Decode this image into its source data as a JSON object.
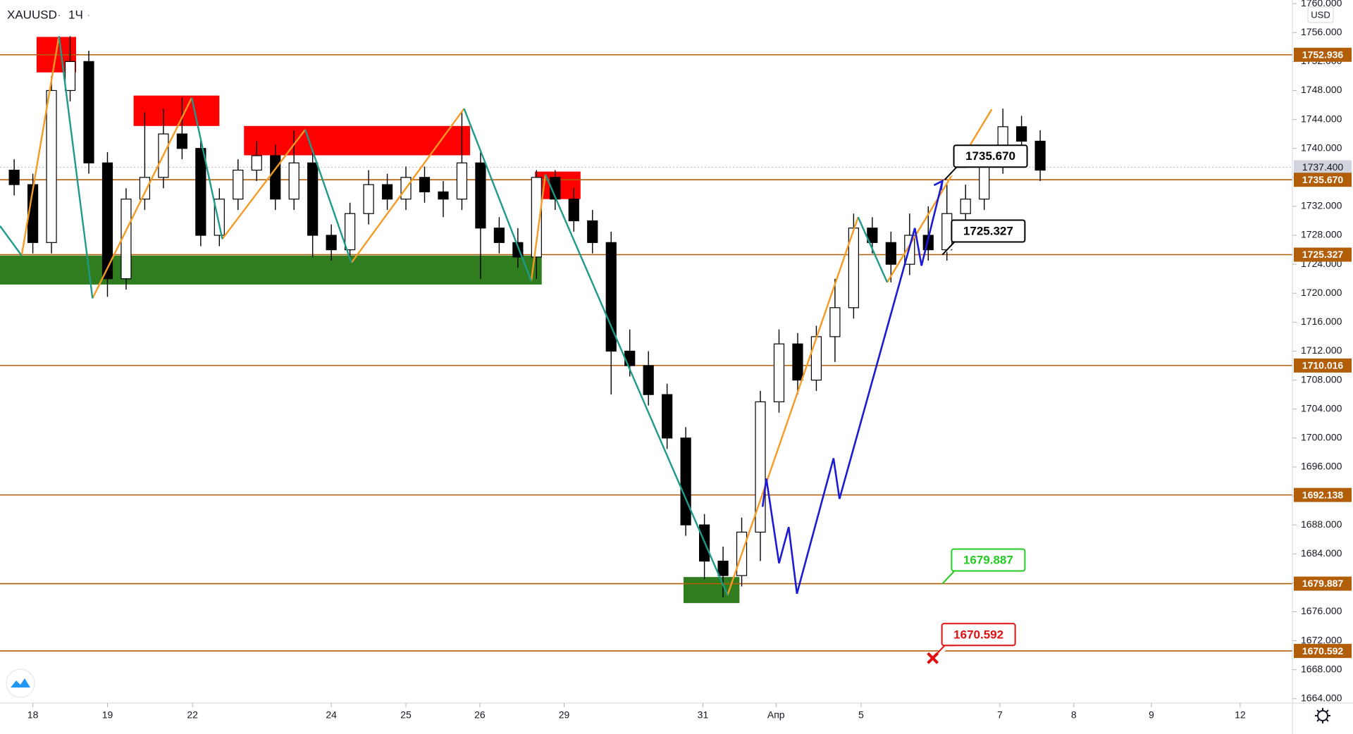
{
  "chart_data": {
    "type": "candlestick",
    "symbol": "XAUUSD",
    "interval": "1Ч",
    "currency": "USD",
    "xlim": [
      -0.44,
      16.88
    ],
    "ylim": [
      1663.4,
      1760.5
    ],
    "xticks": [
      {
        "value": 0,
        "label": "18"
      },
      {
        "value": 1.0,
        "label": "19"
      },
      {
        "value": 2.14,
        "label": "22"
      },
      {
        "value": 4.0,
        "label": "24"
      },
      {
        "value": 5.0,
        "label": "25"
      },
      {
        "value": 5.99,
        "label": "26"
      },
      {
        "value": 7.12,
        "label": "29"
      },
      {
        "value": 8.98,
        "label": "31"
      },
      {
        "value": 9.96,
        "label": "Апр"
      },
      {
        "value": 11.1,
        "label": "5"
      },
      {
        "value": 12.96,
        "label": "7"
      },
      {
        "value": 13.95,
        "label": "8"
      },
      {
        "value": 14.99,
        "label": "9"
      },
      {
        "value": 16.18,
        "label": "12"
      }
    ],
    "yticks": [
      {
        "value": 1664,
        "label": "1664.000"
      },
      {
        "value": 1668,
        "label": "1668.000"
      },
      {
        "value": 1672,
        "label": "1672.000"
      },
      {
        "value": 1676,
        "label": "1676.000"
      },
      {
        "value": 1680,
        "label": "1680.000"
      },
      {
        "value": 1684,
        "label": "1684.000"
      },
      {
        "value": 1688,
        "label": "1688.000"
      },
      {
        "value": 1692,
        "label": "1692.000"
      },
      {
        "value": 1696,
        "label": "1696.000"
      },
      {
        "value": 1700,
        "label": "1700.000"
      },
      {
        "value": 1704,
        "label": "1704.000"
      },
      {
        "value": 1708,
        "label": "1708.000"
      },
      {
        "value": 1712,
        "label": "1712.000"
      },
      {
        "value": 1716,
        "label": "1716.000"
      },
      {
        "value": 1720,
        "label": "1720.000"
      },
      {
        "value": 1724,
        "label": "1724.000"
      },
      {
        "value": 1728,
        "label": "1728.000"
      },
      {
        "value": 1732,
        "label": "1732.000"
      },
      {
        "value": 1736,
        "label": "1736.000"
      },
      {
        "value": 1740,
        "label": "1740.000"
      },
      {
        "value": 1744,
        "label": "1744.000"
      },
      {
        "value": 1748,
        "label": "1748.000"
      },
      {
        "value": 1752,
        "label": "1752.000"
      },
      {
        "value": 1756,
        "label": "1756.000"
      },
      {
        "value": 1760,
        "label": "1760.000"
      }
    ],
    "x": [
      -0.25,
      0,
      0.25,
      0.5,
      0.75,
      1.0,
      1.25,
      1.5,
      1.75,
      2.0,
      2.25,
      2.5,
      2.75,
      3.0,
      3.25,
      3.5,
      3.75,
      4.0,
      4.25,
      4.5,
      4.75,
      5.0,
      5.25,
      5.5,
      5.75,
      6.0,
      6.25,
      6.5,
      6.75,
      7.0,
      7.25,
      7.5,
      7.75,
      8.0,
      8.25,
      8.5,
      8.75,
      9.0,
      9.25,
      9.5,
      9.75,
      10.0,
      10.25,
      10.5,
      10.75,
      11.0,
      11.25,
      11.5,
      11.75,
      12.0,
      12.25,
      12.5,
      12.75,
      13.0,
      13.25,
      13.5
    ],
    "open": [
      1737,
      1735,
      1727,
      1748,
      1752,
      1738,
      1722,
      1733,
      1736,
      1742,
      1740,
      1728,
      1733,
      1737,
      1739,
      1733,
      1738,
      1728,
      1726,
      1731,
      1735,
      1733,
      1736,
      1734,
      1733,
      1738,
      1729,
      1727,
      1725,
      1736,
      1733,
      1730,
      1727,
      1712,
      1710,
      1706,
      1700,
      1688,
      1683,
      1681,
      1687,
      1705,
      1713,
      1708,
      1714,
      1718,
      1729,
      1727,
      1724,
      1728,
      1726,
      1731,
      1733,
      1738,
      1743,
      1741
    ],
    "high": [
      1738.5,
      1736.5,
      1750,
      1755.5,
      1753.5,
      1739.5,
      1734.5,
      1745,
      1745.5,
      1747,
      1741.5,
      1734.5,
      1738.5,
      1741,
      1740.5,
      1742.5,
      1739.5,
      1729.5,
      1732.5,
      1737,
      1736.5,
      1737.5,
      1737.5,
      1735.5,
      1745,
      1739.5,
      1730.5,
      1729,
      1737,
      1737,
      1734.5,
      1731.5,
      1728.5,
      1715,
      1712,
      1707.5,
      1701.5,
      1689.5,
      1685,
      1689,
      1706.5,
      1715,
      1714.5,
      1715.5,
      1722,
      1731,
      1730.5,
      1728.5,
      1731,
      1732,
      1735,
      1735,
      1739.5,
      1745.5,
      1744.5,
      1742.5
    ],
    "low": [
      1733.5,
      1725.5,
      1725.5,
      1746.5,
      1736.5,
      1719.5,
      1720.5,
      1731.5,
      1734.5,
      1738.5,
      1726.5,
      1726.5,
      1731.5,
      1735.5,
      1731.5,
      1731.5,
      1725,
      1724.5,
      1724.5,
      1729.5,
      1731.5,
      1731.5,
      1732.5,
      1730.5,
      1731.5,
      1722,
      1725.5,
      1723.5,
      1722,
      1731.5,
      1728.5,
      1725.5,
      1706,
      1708.5,
      1704.5,
      1698.5,
      1686.5,
      1680.5,
      1678,
      1679.5,
      1683,
      1703.5,
      1706,
      1706.5,
      1710.5,
      1716.5,
      1725.5,
      1721.5,
      1722.5,
      1724.5,
      1724.5,
      1729.5,
      1731.5,
      1736.5,
      1739.5,
      1735.5
    ],
    "close": [
      1735,
      1727,
      1748,
      1752,
      1738,
      1722,
      1733,
      1736,
      1742,
      1740,
      1728,
      1733,
      1737,
      1739,
      1733,
      1738,
      1728,
      1726,
      1731,
      1735,
      1733,
      1736,
      1734,
      1733,
      1738,
      1729,
      1727,
      1725,
      1736,
      1733,
      1730,
      1727,
      1712,
      1710,
      1706,
      1700,
      1688,
      1683,
      1681,
      1687,
      1705,
      1713,
      1708,
      1714,
      1718,
      1729,
      1727,
      1724,
      1728,
      1726,
      1731,
      1733,
      1738,
      1743,
      1741,
      1737
    ],
    "up_color": "#ffffff",
    "down_color": "#000000",
    "last_price": {
      "value": 1737.4,
      "label": "1737.400"
    },
    "level_color": "#b25e09",
    "levels": [
      {
        "value": 1752.936,
        "label": "1752.936"
      },
      {
        "value": 1735.67,
        "label": "1735.670"
      },
      {
        "value": 1725.327,
        "label": "1725.327"
      },
      {
        "value": 1710.016,
        "label": "1710.016"
      },
      {
        "value": 1692.138,
        "label": "1692.138"
      },
      {
        "value": 1679.887,
        "label": "1679.887"
      },
      {
        "value": 1670.592,
        "label": "1670.592"
      }
    ],
    "zones": [
      {
        "color": "#ff0000",
        "x": [
          0.05,
          0.58
        ],
        "y": [
          1750.5,
          1755.4
        ]
      },
      {
        "color": "#ff0000",
        "x": [
          1.35,
          2.5
        ],
        "y": [
          1743.1,
          1747.3
        ]
      },
      {
        "color": "#ff0000",
        "x": [
          2.83,
          5.86
        ],
        "y": [
          1739.05,
          1743.1
        ]
      },
      {
        "color": "#ff0000",
        "x": [
          6.73,
          7.34
        ],
        "y": [
          1733.0,
          1736.8
        ]
      },
      {
        "color": "#2f7d1f",
        "x": [
          -0.44,
          6.82
        ],
        "y": [
          1721.2,
          1725.2
        ]
      },
      {
        "color": "#2f7d1f",
        "x": [
          8.72,
          9.47
        ],
        "y": [
          1677.2,
          1680.8
        ]
      }
    ],
    "zigzags": [
      {
        "color": "#f59a23",
        "x": [
          -0.15,
          0.35,
          null,
          0.8,
          2.13,
          null,
          2.54,
          3.65,
          null,
          4.27,
          5.78,
          null,
          6.68,
          6.87,
          null,
          9.31,
          11.06,
          null,
          11.45,
          12.85
        ],
        "y": [
          1725.2,
          1755.5,
          null,
          1719.3,
          1747.0,
          null,
          1727.5,
          1742.6,
          null,
          1724.2,
          1745.5,
          null,
          1721.7,
          1736.4,
          null,
          1678.3,
          1730.5,
          null,
          1721.5,
          1745.4
        ]
      },
      {
        "color": "#1e9a8a",
        "x": [
          -0.44,
          -0.15,
          null,
          0.35,
          0.8,
          null,
          2.13,
          2.54,
          null,
          3.65,
          4.27,
          null,
          5.78,
          6.68,
          null,
          6.87,
          9.31,
          null,
          11.06,
          11.45
        ],
        "y": [
          1729.3,
          1725.2,
          null,
          1755.5,
          1719.3,
          null,
          1747.0,
          1727.5,
          null,
          1742.6,
          1724.2,
          null,
          1745.5,
          1721.7,
          null,
          1736.4,
          1678.3,
          null,
          1730.5,
          1721.5
        ]
      }
    ],
    "projection": {
      "color": "#1a1ad6",
      "x": [
        9.78,
        9.83,
        10.0,
        10.13,
        10.24,
        10.73,
        10.81,
        11.82,
        11.91,
        12.19
      ],
      "y": [
        1690.5,
        1694.4,
        1682.7,
        1687.7,
        1678.5,
        1697.2,
        1691.6,
        1729.0,
        1723.8,
        1735.5
      ]
    },
    "annotations": [
      {
        "text": "1735.670",
        "color": "#000000",
        "x": 12.22,
        "y": 1735.67
      },
      {
        "text": "1725.327",
        "color": "#000000",
        "x": 12.19,
        "y": 1725.327
      },
      {
        "text": "1679.887",
        "color": "#22cc22",
        "x": 12.19,
        "y": 1679.887
      },
      {
        "text": "1670.592",
        "color": "#e01010",
        "x": 12.06,
        "y": 1669.6,
        "marker": "cross"
      }
    ]
  }
}
